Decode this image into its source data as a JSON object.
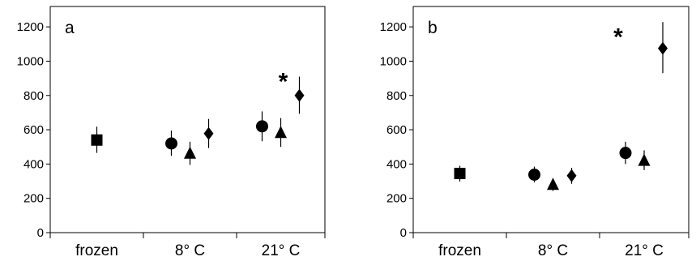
{
  "chart_data": [
    {
      "type": "scatter",
      "panel_label": "a",
      "categories": [
        "frozen",
        "8° C",
        "21° C"
      ],
      "ylim": [
        0,
        1300
      ],
      "yticks": [
        "0",
        "200",
        "400",
        "600",
        "800",
        "1000",
        "1200"
      ],
      "grid": false,
      "points": [
        {
          "category": "frozen",
          "marker": "square",
          "y": 540,
          "y_low": 465,
          "y_high": 618
        },
        {
          "category": "8° C",
          "marker": "circle",
          "y": 520,
          "y_low": 448,
          "y_high": 595
        },
        {
          "category": "8° C",
          "marker": "triangle",
          "y": 460,
          "y_low": 395,
          "y_high": 530
        },
        {
          "category": "8° C",
          "marker": "diamond",
          "y": 578,
          "y_low": 493,
          "y_high": 663
        },
        {
          "category": "21° C",
          "marker": "circle",
          "y": 620,
          "y_low": 533,
          "y_high": 707
        },
        {
          "category": "21° C",
          "marker": "triangle",
          "y": 580,
          "y_low": 500,
          "y_high": 668
        },
        {
          "category": "21° C",
          "marker": "diamond",
          "y": 800,
          "y_low": 693,
          "y_high": 910
        }
      ],
      "annotations": [
        {
          "text": "*",
          "category": "21° C",
          "y": 920
        }
      ]
    },
    {
      "type": "scatter",
      "panel_label": "b",
      "categories": [
        "frozen",
        "8° C",
        "21° C"
      ],
      "ylim": [
        0,
        1300
      ],
      "yticks": [
        "0",
        "200",
        "400",
        "600",
        "800",
        "1000",
        "1200"
      ],
      "grid": false,
      "points": [
        {
          "category": "frozen",
          "marker": "square",
          "y": 345,
          "y_low": 298,
          "y_high": 390
        },
        {
          "category": "8° C",
          "marker": "circle",
          "y": 338,
          "y_low": 293,
          "y_high": 385
        },
        {
          "category": "8° C",
          "marker": "triangle",
          "y": 278,
          "y_low": 243,
          "y_high": 315
        },
        {
          "category": "8° C",
          "marker": "diamond",
          "y": 332,
          "y_low": 285,
          "y_high": 378
        },
        {
          "category": "21° C",
          "marker": "circle",
          "y": 465,
          "y_low": 400,
          "y_high": 530
        },
        {
          "category": "21° C",
          "marker": "triangle",
          "y": 418,
          "y_low": 365,
          "y_high": 480
        },
        {
          "category": "21° C",
          "marker": "diamond",
          "y": 1075,
          "y_low": 930,
          "y_high": 1228
        }
      ],
      "annotations": [
        {
          "text": "*",
          "category": "21° C",
          "y": 1180
        }
      ]
    }
  ]
}
